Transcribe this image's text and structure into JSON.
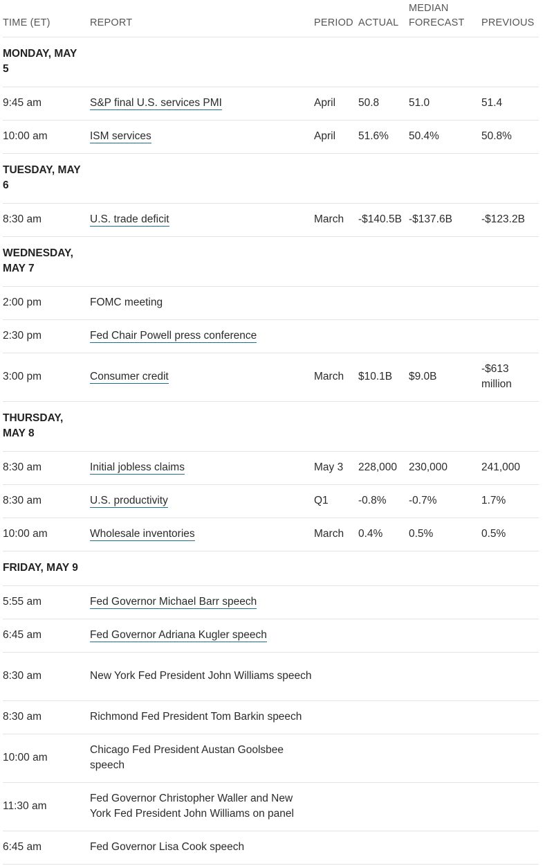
{
  "headers": {
    "time": "TIME (ET)",
    "report": "REPORT",
    "period": "PERIOD",
    "actual": "ACTUAL",
    "forecast": "MEDIAN FORECAST",
    "previous": "PREVIOUS"
  },
  "days": [
    {
      "label": "MONDAY, MAY 5",
      "events": [
        {
          "time": "9:45 am",
          "report": "S&P final U.S. services PMI",
          "period": "April",
          "actual": "50.8",
          "forecast": "51.0",
          "previous": "51.4"
        },
        {
          "time": "10:00 am",
          "report": "ISM services",
          "period": "April",
          "actual": "51.6%",
          "forecast": "50.4%",
          "previous": "50.8%"
        }
      ]
    },
    {
      "label": "TUESDAY, MAY 6",
      "events": [
        {
          "time": "8:30 am",
          "report": "U.S. trade deficit",
          "period": "March",
          "actual": "-$140.5B",
          "forecast": "-$137.6B",
          "previous": "-$123.2B"
        }
      ]
    },
    {
      "label": "WEDNESDAY, MAY 7",
      "events": [
        {
          "time": "2:00 pm",
          "report": "FOMC meeting",
          "period": "",
          "actual": "",
          "forecast": "",
          "previous": ""
        },
        {
          "time": "2:30 pm",
          "report": "Fed Chair Powell press conference",
          "period": "",
          "actual": "",
          "forecast": "",
          "previous": ""
        },
        {
          "time": "3:00 pm",
          "report": "Consumer credit",
          "period": "March",
          "actual": "$10.1B",
          "forecast": "$9.0B",
          "previous": "-$613 million"
        }
      ]
    },
    {
      "label": "THURSDAY, MAY 8",
      "events": [
        {
          "time": "8:30 am",
          "report": "Initial jobless claims",
          "period": "May 3",
          "actual": "228,000",
          "forecast": "230,000",
          "previous": "241,000"
        },
        {
          "time": "8:30 am",
          "report": "U.S. productivity",
          "period": "Q1",
          "actual": "-0.8%",
          "forecast": "-0.7%",
          "previous": "1.7%"
        },
        {
          "time": "10:00 am",
          "report": "Wholesale inventories",
          "period": "March",
          "actual": "0.4%",
          "forecast": "0.5%",
          "previous": "0.5%"
        }
      ]
    },
    {
      "label": "FRIDAY, MAY 9",
      "events": [
        {
          "time": "5:55 am",
          "report": "Fed Governor Michael Barr speech",
          "period": "",
          "actual": "",
          "forecast": "",
          "previous": ""
        },
        {
          "time": "6:45 am",
          "report": "Fed Governor Adriana Kugler speech",
          "period": "",
          "actual": "",
          "forecast": "",
          "previous": ""
        },
        {
          "time": "8:30 am",
          "report": "New York Fed President John Williams speech",
          "period": "",
          "actual": "",
          "forecast": "",
          "previous": ""
        },
        {
          "time": "8:30 am",
          "report": "Richmond Fed President Tom Barkin speech",
          "period": "",
          "actual": "",
          "forecast": "",
          "previous": ""
        },
        {
          "time": "10:00 am",
          "report": "Chicago Fed President Austan Goolsbee speech",
          "period": "",
          "actual": "",
          "forecast": "",
          "previous": ""
        },
        {
          "time": "11:30 am",
          "report": "Fed Governor Christopher Waller and New York Fed President John Williams on panel",
          "period": "",
          "actual": "",
          "forecast": "",
          "previous": ""
        },
        {
          "time": "6:45 am",
          "report": "Fed Governor Lisa Cook speech",
          "period": "",
          "actual": "",
          "forecast": "",
          "previous": ""
        }
      ]
    }
  ]
}
